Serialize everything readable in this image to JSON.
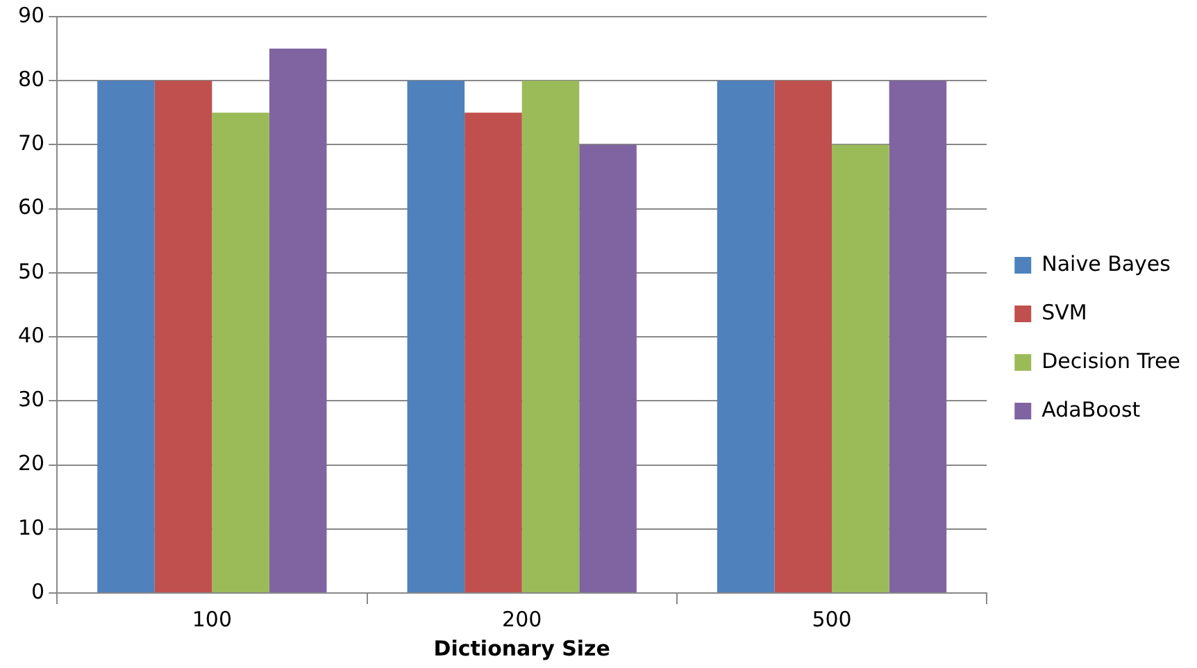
{
  "chart_data": {
    "type": "bar",
    "xlabel": "Dictionary Size",
    "categories": [
      "100",
      "200",
      "500"
    ],
    "series": [
      {
        "name": "Naive Bayes",
        "color": "#4f81bd",
        "values": [
          80,
          80,
          80
        ]
      },
      {
        "name": "SVM",
        "color": "#c0504d",
        "values": [
          80,
          75,
          80
        ]
      },
      {
        "name": "Decision Tree",
        "color": "#9bbb59",
        "values": [
          75,
          80,
          70
        ]
      },
      {
        "name": "AdaBoost",
        "color": "#8064a2",
        "values": [
          85,
          70,
          80
        ]
      }
    ],
    "ylim": [
      0,
      90
    ],
    "yticks": [
      0,
      10,
      20,
      30,
      40,
      50,
      60,
      70,
      80,
      90
    ],
    "grid": "y",
    "legend": "right"
  }
}
